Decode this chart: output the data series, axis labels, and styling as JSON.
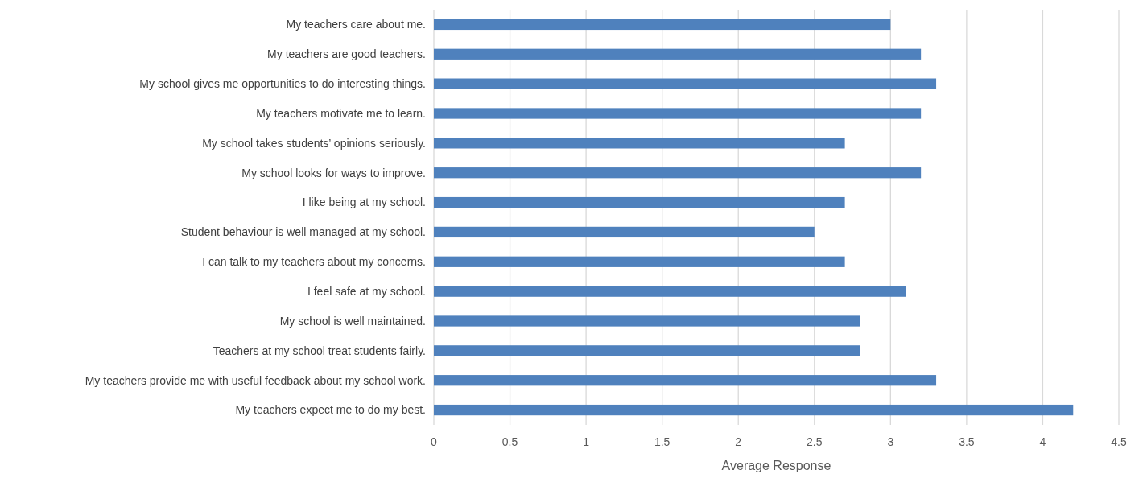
{
  "chart_data": {
    "type": "bar",
    "orientation": "horizontal",
    "xlabel": "Average Response",
    "categories": [
      "My teachers care about me.",
      "My teachers are good teachers.",
      "My school gives me opportunities to do interesting things.",
      "My teachers motivate me to learn.",
      "My school takes students’ opinions seriously.",
      "My school looks for ways to improve.",
      "I like being at my school.",
      "Student behaviour is well managed at my school.",
      "I can talk to my teachers about my concerns.",
      "I feel safe at my school.",
      "My school is well maintained.",
      "Teachers at my school treat students fairly.",
      "My teachers provide me with useful feedback about my school work.",
      "My teachers expect me to do my best."
    ],
    "values": [
      3.0,
      3.2,
      3.3,
      3.2,
      2.7,
      3.2,
      2.7,
      2.5,
      2.7,
      3.1,
      2.8,
      2.8,
      3.3,
      4.2
    ],
    "color": "#4f81bd",
    "xlim": [
      0,
      4.5
    ],
    "xticks": [
      0,
      0.5,
      1,
      1.5,
      2,
      2.5,
      3,
      3.5,
      4,
      4.5
    ],
    "grid": "x"
  }
}
